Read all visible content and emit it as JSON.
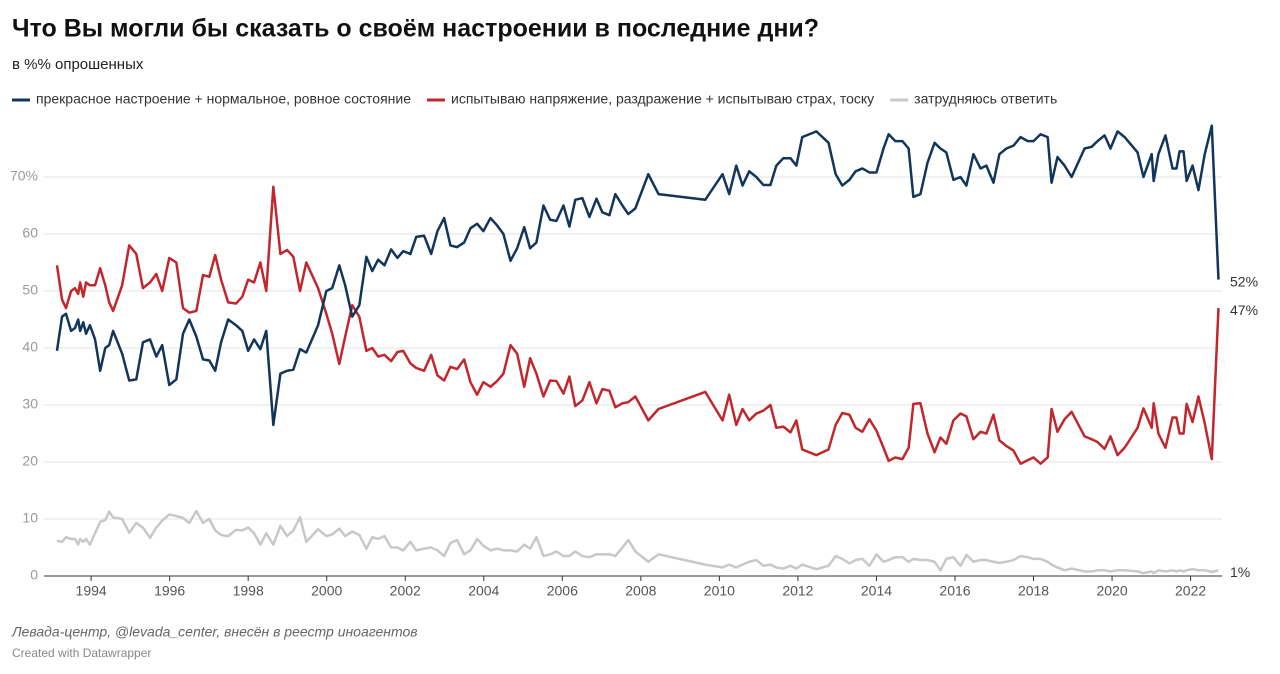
{
  "chart_data": {
    "type": "line",
    "title": "Что Вы могли бы сказать о своём настроении в последние дни?",
    "subtitle": "в %% опрошенных",
    "source": "Левада-центр, @levada_center, внесён в реестр иноагентов",
    "credit": "Created with Datawrapper",
    "x": [
      1993.13,
      1993.26,
      1993.36,
      1993.49,
      1993.59,
      1993.67,
      1993.72,
      1993.8,
      1993.87,
      1993.97,
      1994.1,
      1994.23,
      1994.36,
      1994.46,
      1994.56,
      1994.79,
      1994.97,
      1995.15,
      1995.32,
      1995.5,
      1995.66,
      1995.81,
      1995.99,
      1996.17,
      1996.34,
      1996.5,
      1996.68,
      1996.85,
      1997.01,
      1997.16,
      1997.31,
      1997.49,
      1997.69,
      1997.85,
      1998.0,
      1998.15,
      1998.31,
      1998.46,
      1998.64,
      1998.82,
      1998.99,
      1999.15,
      1999.32,
      1999.48,
      1999.78,
      1999.99,
      2000.14,
      2000.32,
      2000.47,
      2000.65,
      2000.83,
      2001.01,
      2001.16,
      2001.31,
      2001.47,
      2001.64,
      2001.8,
      2001.95,
      2002.13,
      2002.28,
      2002.48,
      2002.66,
      2002.82,
      2002.99,
      2003.15,
      2003.32,
      2003.5,
      2003.66,
      2003.83,
      2003.99,
      2004.17,
      2004.34,
      2004.5,
      2004.68,
      2004.85,
      2005.03,
      2005.18,
      2005.34,
      2005.52,
      2005.69,
      2005.85,
      2006.03,
      2006.18,
      2006.33,
      2006.51,
      2006.69,
      2006.87,
      2007.02,
      2007.2,
      2007.35,
      2007.53,
      2007.68,
      2007.86,
      2008.19,
      2008.45,
      2009.64,
      2010.08,
      2010.25,
      2010.43,
      2010.59,
      2010.76,
      2010.94,
      2011.12,
      2011.3,
      2011.45,
      2011.63,
      2011.81,
      2011.96,
      2012.11,
      2012.47,
      2012.78,
      2012.96,
      2013.13,
      2013.31,
      2013.47,
      2013.64,
      2013.82,
      2014.0,
      2014.18,
      2014.31,
      2014.48,
      2014.66,
      2014.82,
      2014.94,
      2015.12,
      2015.3,
      2015.48,
      2015.63,
      2015.78,
      2015.96,
      2016.14,
      2016.29,
      2016.47,
      2016.65,
      2016.8,
      2016.98,
      2017.13,
      2017.31,
      2017.49,
      2017.67,
      2017.85,
      2018.0,
      2018.18,
      2018.36,
      2018.46,
      2018.61,
      2018.79,
      2018.97,
      2019.3,
      2019.48,
      2019.63,
      2019.81,
      2019.96,
      2020.14,
      2020.32,
      2020.65,
      2020.8,
      2021.01,
      2021.06,
      2021.18,
      2021.36,
      2021.54,
      2021.64,
      2021.72,
      2021.82,
      2021.9,
      2022.05,
      2022.2,
      2022.36,
      2022.54,
      2022.71
    ],
    "series": [
      {
        "name": "прекрасное настроение + нормальное, ровное состояние",
        "color": "#12355b",
        "end_label": "52%",
        "values": [
          39.5,
          45.5,
          46,
          43,
          43.5,
          45,
          43,
          44.5,
          42.5,
          44,
          41.5,
          36,
          40,
          40.5,
          43,
          39,
          34.3,
          34.5,
          41,
          41.5,
          38.5,
          40.5,
          33.5,
          34.5,
          42.5,
          45,
          42,
          38,
          37.8,
          36,
          41,
          45,
          44,
          43,
          39.5,
          41.5,
          39.8,
          43,
          26.5,
          35.5,
          36,
          36.2,
          39.8,
          39.2,
          44,
          50,
          50.5,
          54.5,
          51,
          45.5,
          47.5,
          56,
          53.5,
          55.5,
          54.5,
          57.3,
          55.8,
          57,
          56.5,
          59.5,
          59.7,
          56.5,
          60.5,
          62.8,
          58,
          57.7,
          58.5,
          61,
          61.8,
          60.5,
          62.8,
          61.5,
          60,
          55.3,
          57.5,
          61.2,
          57.5,
          58.5,
          65,
          62.5,
          62.3,
          65,
          61.3,
          66,
          66.3,
          63,
          66.2,
          63.8,
          63.3,
          67,
          65,
          63.5,
          64.5,
          70.5,
          67,
          66,
          70.5,
          67,
          72,
          68.5,
          71,
          70,
          68.6,
          68.6,
          72,
          73.3,
          73.3,
          72,
          77,
          78,
          76,
          70.5,
          68.5,
          69.5,
          71,
          71.5,
          70.8,
          70.8,
          75,
          77.5,
          76.3,
          76.3,
          75,
          66.5,
          67,
          72.5,
          76,
          75,
          74.3,
          69.5,
          70,
          68.5,
          74,
          71.5,
          72,
          69,
          74,
          75,
          75.5,
          77,
          76.3,
          76.3,
          77.5,
          77,
          69,
          73.5,
          72,
          70,
          75,
          75.3,
          76.3,
          77.3,
          75,
          78,
          77,
          74.3,
          70,
          74,
          69.3,
          74,
          77.3,
          71.5,
          71.5,
          74.5,
          74.5,
          69.3,
          72,
          67.7,
          74,
          79,
          52
        ]
      },
      {
        "name": "испытываю напряжение, раздражение + испытываю страх, тоску",
        "color": "#c1272d",
        "end_label": "47%",
        "values": [
          54.5,
          48.5,
          47,
          50,
          50.5,
          49.5,
          51.5,
          49,
          51.5,
          51,
          51,
          54,
          51,
          48,
          46.5,
          51,
          58,
          56.5,
          50.5,
          51.5,
          53,
          50,
          55.8,
          55,
          47,
          46.2,
          46.5,
          52.8,
          52.5,
          56.3,
          52,
          48,
          47.8,
          49,
          52,
          51.5,
          55,
          50,
          68.3,
          56.5,
          57.2,
          56,
          50,
          55,
          50.5,
          46,
          42.5,
          37.2,
          42,
          47.5,
          45.5,
          39.5,
          40,
          38.5,
          38.8,
          37.7,
          39.3,
          39.5,
          37.3,
          36.5,
          36,
          38.8,
          35.2,
          34.3,
          36.7,
          36.3,
          38,
          34,
          31.8,
          34,
          33.2,
          34.2,
          35.5,
          40.5,
          39,
          33.2,
          38.2,
          35.5,
          31.5,
          34.3,
          34.2,
          32,
          35,
          29.8,
          30.8,
          34,
          30.3,
          32.8,
          32.5,
          29.6,
          30.3,
          30.5,
          31.5,
          27.3,
          29.3,
          32.3,
          27.3,
          31.8,
          26.5,
          29.3,
          27.3,
          28.5,
          29,
          30,
          26,
          26.2,
          25.2,
          27.3,
          22.2,
          21.2,
          22.2,
          26.5,
          28.6,
          28.3,
          26,
          25.3,
          27.5,
          25.5,
          22.5,
          20.2,
          20.8,
          20.5,
          22.5,
          30.2,
          30.3,
          25,
          21.7,
          24.3,
          23.2,
          27.3,
          28.5,
          28,
          24,
          25.3,
          25,
          28.3,
          23.8,
          22.8,
          22,
          19.7,
          20.3,
          20.8,
          19.7,
          20.8,
          29.3,
          25.3,
          27.5,
          28.8,
          24.5,
          24,
          23.5,
          22.3,
          24.5,
          21.2,
          22.5,
          26,
          29.4,
          26,
          30.3,
          25,
          22.5,
          27.8,
          27.8,
          25,
          25,
          30.2,
          27,
          31.5,
          26.8,
          20.5,
          47
        ]
      },
      {
        "name": "затрудняюсь ответить",
        "color": "#c8c8c8",
        "end_label": "1%",
        "values": [
          6.2,
          6,
          6.8,
          6.5,
          6.5,
          5.5,
          6.5,
          6,
          6.5,
          5.5,
          7.5,
          9.5,
          9.8,
          11.3,
          10.3,
          10,
          7.6,
          9.3,
          8.5,
          6.7,
          8.5,
          9.7,
          10.8,
          10.5,
          10.2,
          9.3,
          11.4,
          9.3,
          10,
          8,
          7.2,
          7,
          8.1,
          8,
          8.5,
          7.5,
          5.5,
          7.5,
          5.5,
          8.8,
          7,
          8,
          10.3,
          6,
          8.2,
          7,
          7.3,
          8.3,
          7,
          7.8,
          7.2,
          4.8,
          6.8,
          6.5,
          7,
          5,
          5,
          4.5,
          6,
          4.5,
          4.8,
          5,
          4.5,
          3.5,
          5.8,
          6.3,
          3.8,
          4.5,
          6.5,
          5.3,
          4.5,
          4.8,
          4.5,
          4.5,
          4.3,
          5.5,
          4.8,
          6.8,
          3.5,
          3.8,
          4.3,
          3.5,
          3.5,
          4.3,
          3.5,
          3.3,
          3.8,
          3.8,
          3.8,
          3.5,
          5,
          6.3,
          4.3,
          2.5,
          3.8,
          2,
          1.5,
          2,
          1.5,
          2,
          2.5,
          2.8,
          1.8,
          2,
          1.5,
          1.3,
          1.8,
          1.3,
          2,
          1.2,
          1.8,
          3.5,
          3,
          2.2,
          2.8,
          3,
          1.8,
          3.8,
          2.5,
          2.8,
          3.3,
          3.3,
          2.5,
          3,
          2.8,
          2.8,
          2.5,
          1,
          3,
          3.3,
          1.8,
          3.7,
          2.5,
          2.8,
          2.8,
          2.5,
          2.3,
          2.5,
          2.8,
          3.5,
          3.3,
          3,
          3,
          2.5,
          2,
          1.5,
          1,
          1.3,
          0.8,
          0.8,
          1,
          1,
          0.8,
          1,
          1,
          0.8,
          0.5,
          0.8,
          0.5,
          1,
          0.8,
          1,
          0.8,
          1,
          0.8,
          1,
          1.2,
          1,
          1,
          0.7,
          1
        ]
      }
    ],
    "xlim": [
      1992.8,
      2022.8
    ],
    "xticks": [
      1994,
      1996,
      1998,
      2000,
      2002,
      2004,
      2006,
      2008,
      2010,
      2012,
      2014,
      2016,
      2018,
      2020,
      2022
    ],
    "ylim": [
      0,
      80
    ],
    "yticks": [
      0,
      10,
      20,
      30,
      40,
      50,
      60,
      {
        "value": 70,
        "label": "70%"
      }
    ],
    "grid": true
  }
}
